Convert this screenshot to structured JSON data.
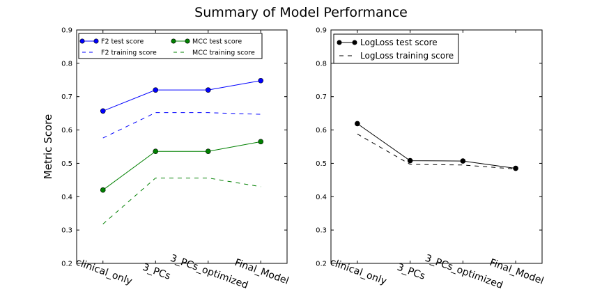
{
  "chart_data": {
    "suptitle": "Summary of Model Performance",
    "subplots": [
      {
        "type": "line",
        "ylabel": "Metric Score",
        "ylim": [
          0.2,
          0.9
        ],
        "yticks": [
          "0.2",
          "0.3",
          "0.4",
          "0.5",
          "0.6",
          "0.7",
          "0.8",
          "0.9"
        ],
        "categories": [
          "clinical_only",
          "3_PCs",
          "3_PCs_optimized",
          "Final_Model"
        ],
        "legend_position": "top-left",
        "legend_columns": 2,
        "grid": false,
        "series": [
          {
            "name": "F2 test score",
            "values": [
              0.657,
              0.72,
              0.72,
              0.748
            ],
            "color": "#0000ff",
            "style": "solid",
            "marker": true
          },
          {
            "name": "F2 training score",
            "values": [
              0.576,
              0.652,
              0.652,
              0.647
            ],
            "color": "#0000ff",
            "style": "dashed",
            "marker": false
          },
          {
            "name": "MCC test score",
            "values": [
              0.42,
              0.536,
              0.536,
              0.565
            ],
            "color": "#008000",
            "style": "solid",
            "marker": true
          },
          {
            "name": "MCC training score",
            "values": [
              0.318,
              0.456,
              0.456,
              0.43
            ],
            "color": "#008000",
            "style": "dashed",
            "marker": false
          }
        ]
      },
      {
        "type": "line",
        "ylabel": "",
        "ylim": [
          0.2,
          0.9
        ],
        "yticks": [
          "0.2",
          "0.3",
          "0.4",
          "0.5",
          "0.6",
          "0.7",
          "0.8",
          "0.9"
        ],
        "categories": [
          "clinical_only",
          "3_PCs",
          "3_PCs_optimized",
          "Final_Model"
        ],
        "legend_position": "top-left",
        "legend_columns": 1,
        "grid": false,
        "series": [
          {
            "name": "LogLoss test score",
            "values": [
              0.619,
              0.508,
              0.507,
              0.485
            ],
            "color": "#000000",
            "style": "solid",
            "marker": true
          },
          {
            "name": "LogLoss training score",
            "values": [
              0.588,
              0.497,
              0.495,
              0.483
            ],
            "color": "#000000",
            "style": "dashed",
            "marker": false
          }
        ]
      }
    ]
  }
}
